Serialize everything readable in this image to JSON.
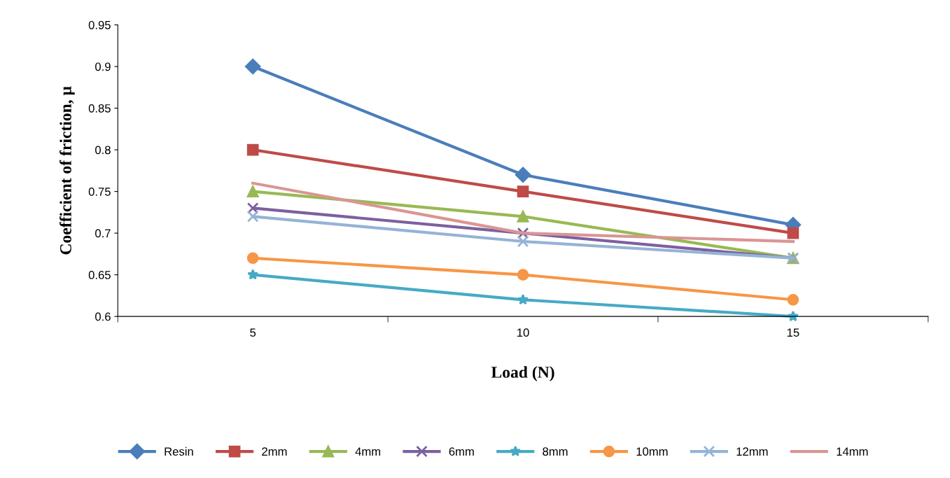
{
  "chart_data": {
    "type": "line",
    "xlabel": "Load (N)",
    "ylabel": "Coefficient of friction, μ",
    "categories": [
      "5",
      "10",
      "15"
    ],
    "ylim": [
      0.6,
      0.95
    ],
    "yticks": [
      0.6,
      0.65,
      0.7,
      0.75,
      0.8,
      0.85,
      0.9,
      0.95
    ],
    "grid": false,
    "legend": "bottom",
    "line_style": "solid",
    "series": [
      {
        "name": "Resin",
        "color": "#4a7ebb",
        "marker": "diamond",
        "values": [
          0.9,
          0.77,
          0.71
        ]
      },
      {
        "name": "2mm",
        "color": "#be4b48",
        "marker": "square",
        "values": [
          0.8,
          0.75,
          0.7
        ]
      },
      {
        "name": "4mm",
        "color": "#98b954",
        "marker": "triangle",
        "values": [
          0.75,
          0.72,
          0.67
        ]
      },
      {
        "name": "6mm",
        "color": "#7d60a0",
        "marker": "cross",
        "values": [
          0.73,
          0.7,
          0.67
        ]
      },
      {
        "name": "8mm",
        "color": "#46aac5",
        "marker": "star",
        "values": [
          0.65,
          0.62,
          0.6
        ]
      },
      {
        "name": "10mm",
        "color": "#f79646",
        "marker": "circle",
        "values": [
          0.67,
          0.65,
          0.62
        ]
      },
      {
        "name": "12mm",
        "color": "#95b3d7",
        "marker": "cross",
        "values": [
          0.72,
          0.69,
          0.67
        ]
      },
      {
        "name": "14mm",
        "color": "#d99694",
        "marker": "none",
        "values": [
          0.76,
          0.7,
          0.69
        ]
      }
    ]
  }
}
